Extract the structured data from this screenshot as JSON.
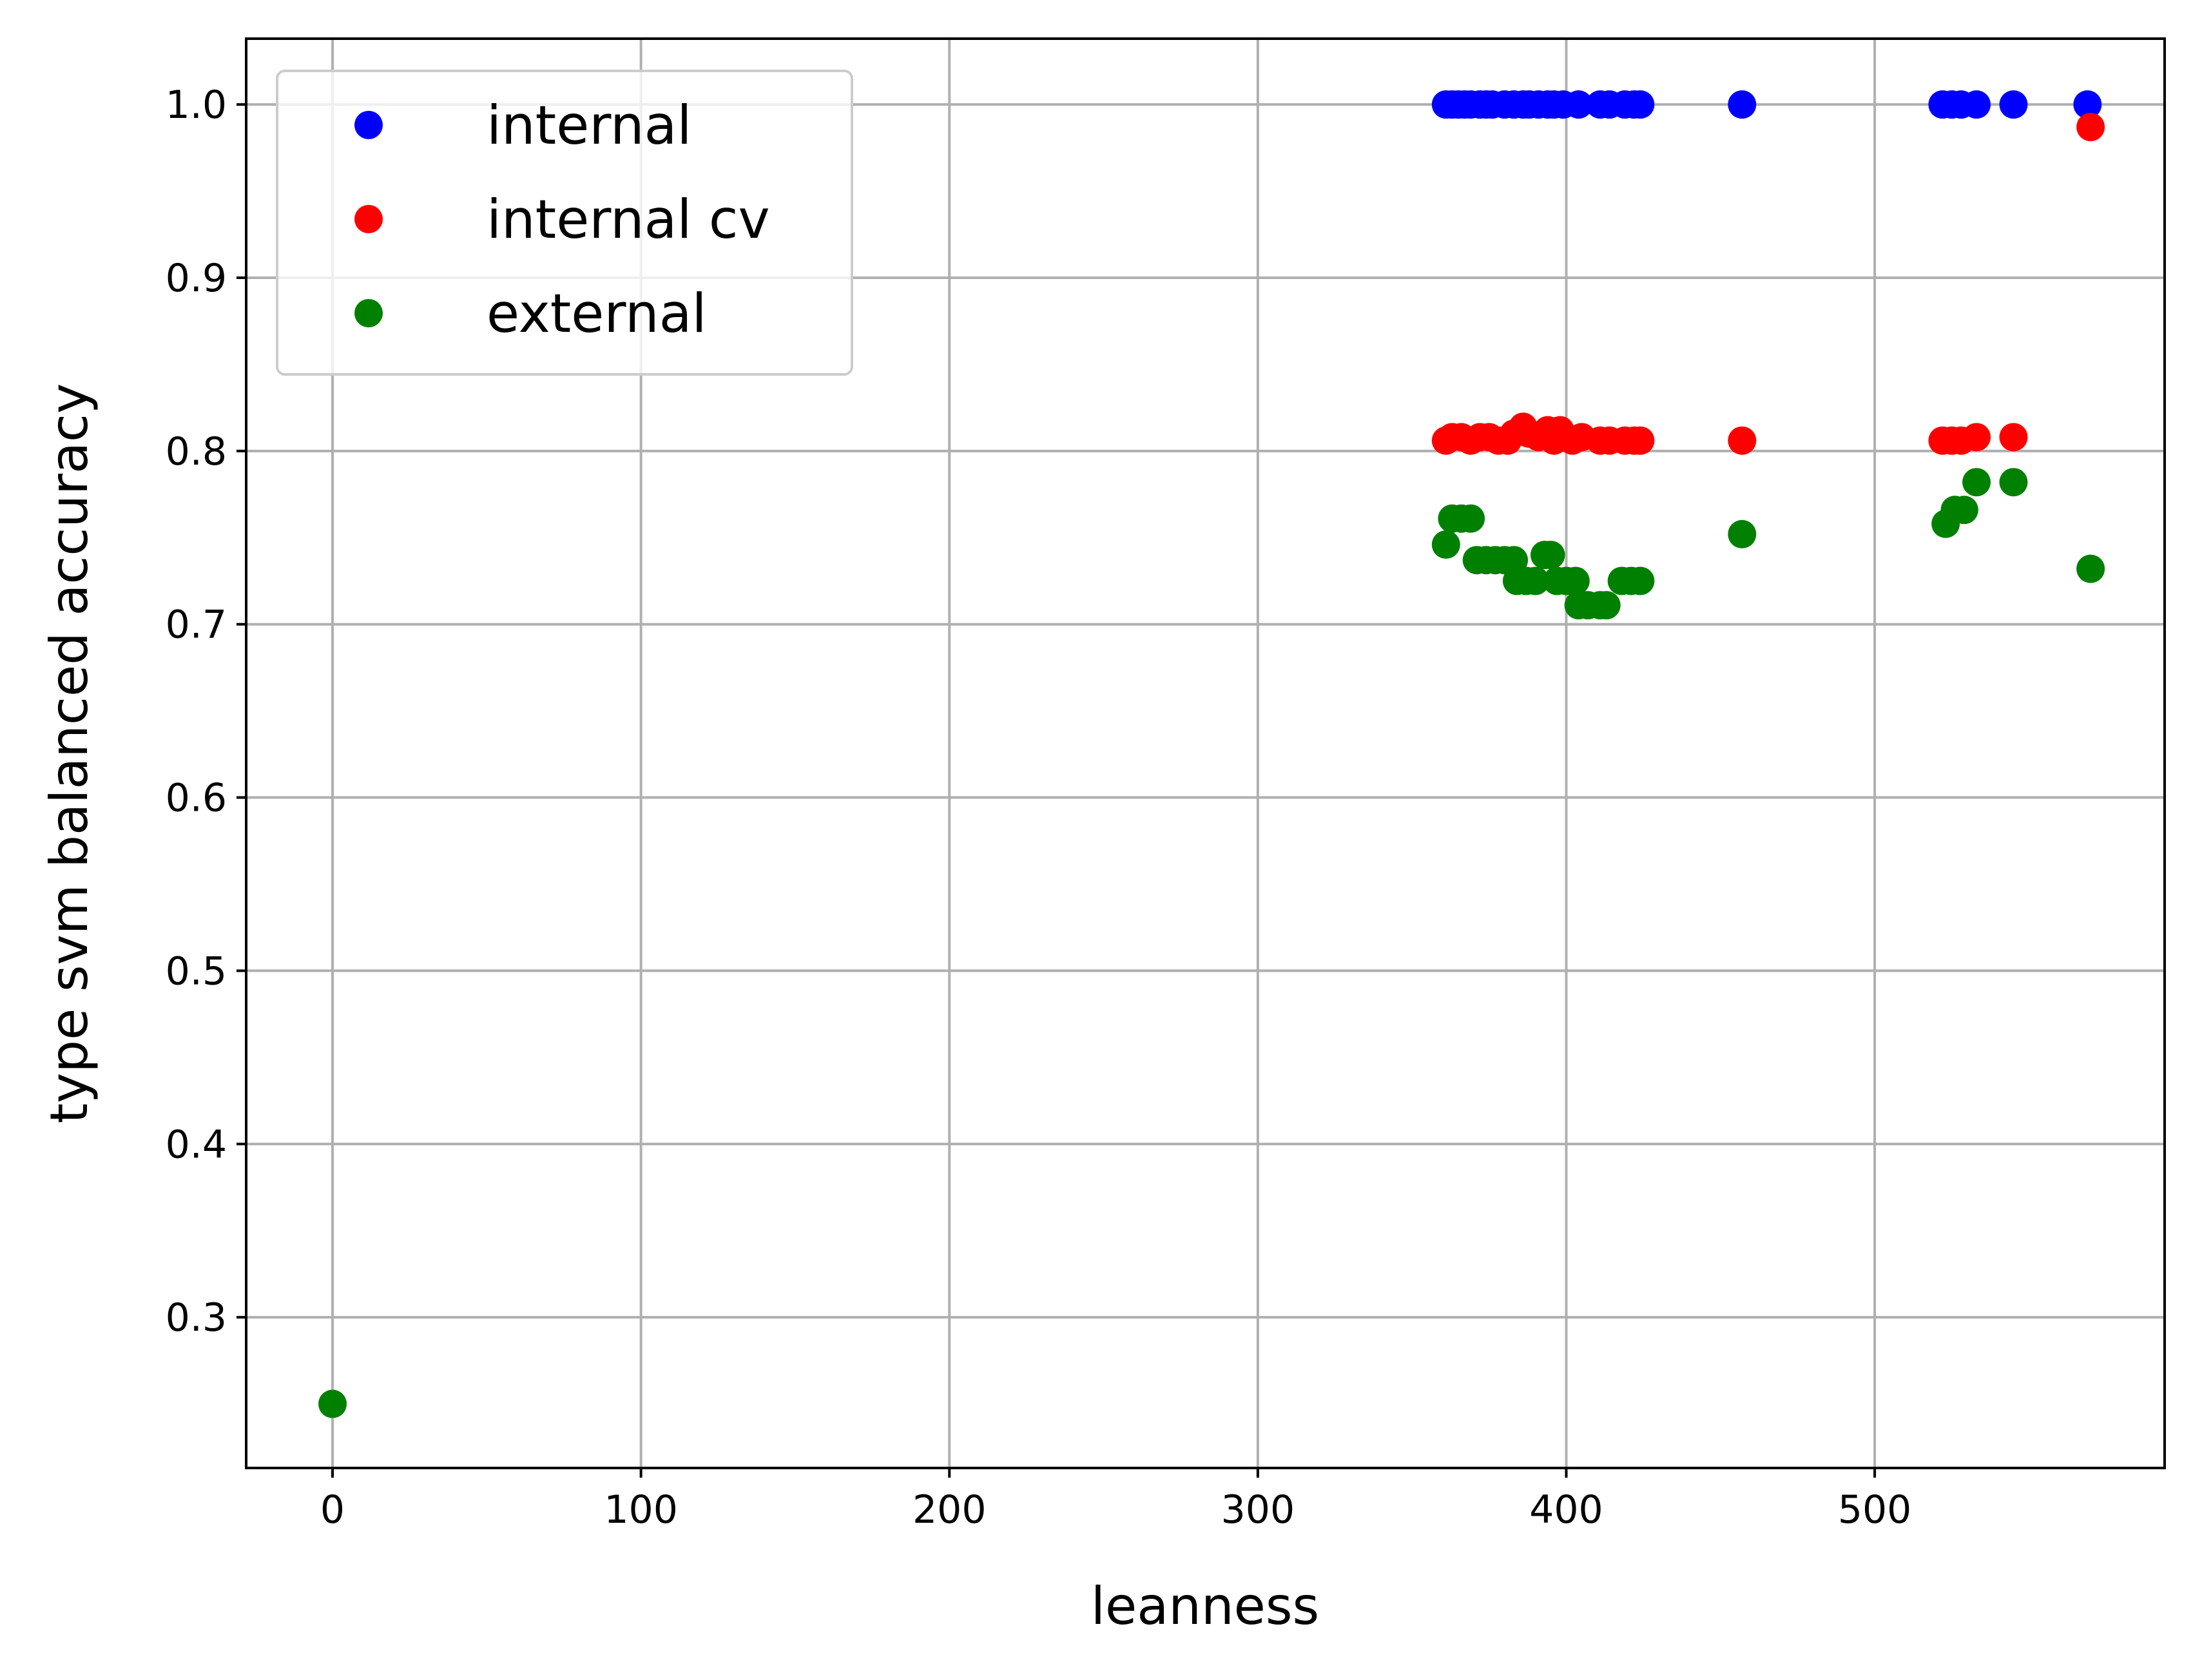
{
  "chart_data": {
    "type": "scatter",
    "title": "",
    "xlabel": "leanness",
    "ylabel": "type svm balanced accuracy",
    "xlim": [
      -28,
      594
    ],
    "ylim": [
      0.213,
      1.038
    ],
    "xticks": [
      0,
      100,
      200,
      300,
      400,
      500
    ],
    "yticks": [
      0.3,
      0.4,
      0.5,
      0.6,
      0.7,
      0.8,
      0.9,
      1.0
    ],
    "xtick_labels": [
      "0",
      "100",
      "200",
      "300",
      "400",
      "500"
    ],
    "ytick_labels": [
      "0.3",
      "0.4",
      "0.5",
      "0.6",
      "0.7",
      "0.8",
      "0.9",
      "1.0"
    ],
    "grid": true,
    "legend_position": "top-left",
    "series": [
      {
        "name": "internal",
        "color": "#0000ff",
        "points": [
          [
            361,
            1.0
          ],
          [
            363,
            1.0
          ],
          [
            365,
            1.0
          ],
          [
            367,
            1.0
          ],
          [
            369,
            1.0
          ],
          [
            372,
            1.0
          ],
          [
            374,
            1.0
          ],
          [
            376,
            1.0
          ],
          [
            380,
            1.0
          ],
          [
            383,
            1.0
          ],
          [
            386,
            1.0
          ],
          [
            388,
            1.0
          ],
          [
            391,
            1.0
          ],
          [
            394,
            1.0
          ],
          [
            396,
            1.0
          ],
          [
            399,
            1.0
          ],
          [
            404,
            1.0
          ],
          [
            411,
            1.0
          ],
          [
            414,
            1.0
          ],
          [
            419,
            1.0
          ],
          [
            422,
            1.0
          ],
          [
            424,
            1.0
          ],
          [
            457,
            1.0
          ],
          [
            522,
            1.0
          ],
          [
            525,
            1.0
          ],
          [
            528,
            1.0
          ],
          [
            533,
            1.0
          ],
          [
            545,
            1.0
          ],
          [
            569,
            1.0
          ]
        ]
      },
      {
        "name": "internal cv",
        "color": "#ff0000",
        "points": [
          [
            361,
            0.806
          ],
          [
            363,
            0.808
          ],
          [
            366,
            0.808
          ],
          [
            369,
            0.806
          ],
          [
            372,
            0.808
          ],
          [
            375,
            0.808
          ],
          [
            378,
            0.806
          ],
          [
            381,
            0.806
          ],
          [
            383,
            0.81
          ],
          [
            386,
            0.814
          ],
          [
            388,
            0.81
          ],
          [
            391,
            0.808
          ],
          [
            394,
            0.812
          ],
          [
            396,
            0.806
          ],
          [
            398,
            0.812
          ],
          [
            402,
            0.806
          ],
          [
            405,
            0.808
          ],
          [
            411,
            0.806
          ],
          [
            414,
            0.806
          ],
          [
            419,
            0.806
          ],
          [
            422,
            0.806
          ],
          [
            424,
            0.806
          ],
          [
            457,
            0.806
          ],
          [
            522,
            0.806
          ],
          [
            525,
            0.806
          ],
          [
            528,
            0.806
          ],
          [
            533,
            0.808
          ],
          [
            545,
            0.808
          ],
          [
            570,
            0.987
          ]
        ]
      },
      {
        "name": "external",
        "color": "#008000",
        "points": [
          [
            0,
            0.25
          ],
          [
            361,
            0.746
          ],
          [
            363,
            0.761
          ],
          [
            366,
            0.761
          ],
          [
            369,
            0.761
          ],
          [
            371,
            0.737
          ],
          [
            374,
            0.737
          ],
          [
            377,
            0.737
          ],
          [
            380,
            0.737
          ],
          [
            383,
            0.737
          ],
          [
            384,
            0.725
          ],
          [
            387,
            0.725
          ],
          [
            390,
            0.725
          ],
          [
            393,
            0.74
          ],
          [
            395,
            0.74
          ],
          [
            397,
            0.725
          ],
          [
            400,
            0.725
          ],
          [
            403,
            0.725
          ],
          [
            404,
            0.711
          ],
          [
            407,
            0.711
          ],
          [
            411,
            0.711
          ],
          [
            413,
            0.711
          ],
          [
            418,
            0.725
          ],
          [
            421,
            0.725
          ],
          [
            424,
            0.725
          ],
          [
            457,
            0.752
          ],
          [
            523,
            0.758
          ],
          [
            526,
            0.766
          ],
          [
            529,
            0.766
          ],
          [
            533,
            0.782
          ],
          [
            545,
            0.782
          ],
          [
            570,
            0.732
          ]
        ]
      }
    ]
  }
}
